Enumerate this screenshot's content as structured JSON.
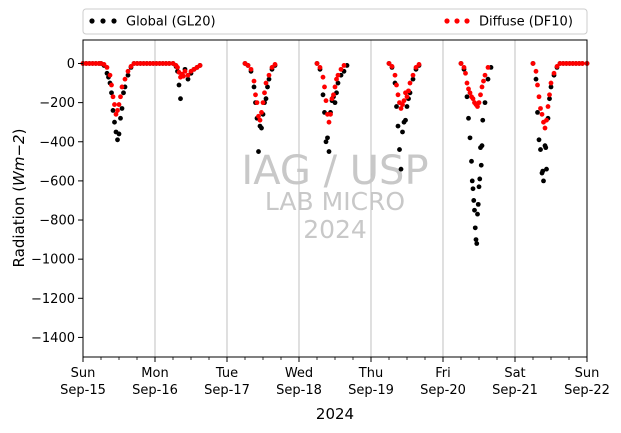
{
  "chart_data": {
    "type": "scatter",
    "xlabel": "2024",
    "ylabel": "Radiation (Wm−2)",
    "ylim": [
      -1500,
      120
    ],
    "yticks": [
      0,
      -200,
      -400,
      -600,
      -800,
      -1000,
      -1200,
      -1400
    ],
    "x_start": "2024-09-15",
    "x_end": "2024-09-22",
    "x_ticks": [
      {
        "day": "Sun",
        "date": "Sep-15"
      },
      {
        "day": "Mon",
        "date": "Sep-16"
      },
      {
        "day": "Tue",
        "date": "Sep-17"
      },
      {
        "day": "Wed",
        "date": "Sep-18"
      },
      {
        "day": "Thu",
        "date": "Sep-19"
      },
      {
        "day": "Fri",
        "date": "Sep-20"
      },
      {
        "day": "Sat",
        "date": "Sep-21"
      },
      {
        "day": "Sun",
        "date": "Sep-22"
      }
    ],
    "grid": "vertical",
    "legend_placement": "top",
    "series": [
      {
        "name": "Global (GL20)",
        "color": "#000000",
        "marker": "dot",
        "points": [
          [
            "09-15 00:00",
            0
          ],
          [
            "09-15 06:00",
            0
          ],
          [
            "09-15 07:00",
            -10
          ],
          [
            "09-15 08:00",
            -50
          ],
          [
            "09-15 08:30",
            -70
          ],
          [
            "09-15 09:00",
            -100
          ],
          [
            "09-15 09:30",
            -150
          ],
          [
            "09-15 10:00",
            -240
          ],
          [
            "09-15 10:30",
            -300
          ],
          [
            "09-15 11:00",
            -350
          ],
          [
            "09-15 11:30",
            -390
          ],
          [
            "09-15 12:00",
            -360
          ],
          [
            "09-15 12:30",
            -280
          ],
          [
            "09-15 13:00",
            -230
          ],
          [
            "09-15 13:30",
            -150
          ],
          [
            "09-15 14:00",
            -120
          ],
          [
            "09-15 15:00",
            -60
          ],
          [
            "09-15 16:00",
            -20
          ],
          [
            "09-15 17:00",
            0
          ],
          [
            "09-16 06:00",
            0
          ],
          [
            "09-16 07:00",
            -15
          ],
          [
            "09-16 07:30",
            -40
          ],
          [
            "09-16 08:00",
            -110
          ],
          [
            "09-16 08:30",
            -180
          ],
          [
            "09-16 09:00",
            -60
          ],
          [
            "09-16 10:00",
            -30
          ],
          [
            "09-16 11:00",
            -80
          ],
          [
            "09-16 12:00",
            -50
          ],
          [
            "09-16 13:00",
            -30
          ],
          [
            "09-16 14:00",
            -20
          ],
          [
            "09-16 15:00",
            -10
          ],
          [
            "09-17 06:00",
            0
          ],
          [
            "09-17 07:00",
            -10
          ],
          [
            "09-17 08:00",
            -40
          ],
          [
            "09-17 09:00",
            -120
          ],
          [
            "09-17 09:30",
            -200
          ],
          [
            "09-17 10:00",
            -280
          ],
          [
            "09-17 10:30",
            -450
          ],
          [
            "09-17 11:00",
            -320
          ],
          [
            "09-17 11:30",
            -330
          ],
          [
            "09-17 12:00",
            -260
          ],
          [
            "09-17 12:30",
            -200
          ],
          [
            "09-17 13:00",
            -180
          ],
          [
            "09-17 13:30",
            -120
          ],
          [
            "09-17 14:00",
            -80
          ],
          [
            "09-17 15:00",
            -30
          ],
          [
            "09-17 16:00",
            -10
          ],
          [
            "09-18 06:00",
            0
          ],
          [
            "09-18 07:00",
            -30
          ],
          [
            "09-18 08:00",
            -160
          ],
          [
            "09-18 08:30",
            -250
          ],
          [
            "09-18 09:00",
            -400
          ],
          [
            "09-18 09:30",
            -380
          ],
          [
            "09-18 10:00",
            -450
          ],
          [
            "09-18 10:30",
            -250
          ],
          [
            "09-18 11:00",
            -190
          ],
          [
            "09-18 11:30",
            -170
          ],
          [
            "09-18 12:00",
            -200
          ],
          [
            "09-18 12:30",
            -150
          ],
          [
            "09-18 13:00",
            -100
          ],
          [
            "09-18 14:00",
            -60
          ],
          [
            "09-18 15:00",
            -40
          ],
          [
            "09-18 16:00",
            -10
          ],
          [
            "09-19 06:00",
            0
          ],
          [
            "09-19 07:00",
            -20
          ],
          [
            "09-19 08:00",
            -100
          ],
          [
            "09-19 08:30",
            -220
          ],
          [
            "09-19 09:00",
            -320
          ],
          [
            "09-19 09:30",
            -440
          ],
          [
            "09-19 10:00",
            -540
          ],
          [
            "09-19 10:30",
            -350
          ],
          [
            "09-19 11:00",
            -300
          ],
          [
            "09-19 11:30",
            -290
          ],
          [
            "09-19 12:00",
            -220
          ],
          [
            "09-19 12:30",
            -180
          ],
          [
            "09-19 13:00",
            -150
          ],
          [
            "09-19 14:00",
            -80
          ],
          [
            "09-19 15:00",
            -30
          ],
          [
            "09-19 16:00",
            -10
          ],
          [
            "09-20 06:00",
            0
          ],
          [
            "09-20 07:00",
            -30
          ],
          [
            "09-20 08:00",
            -170
          ],
          [
            "09-20 08:30",
            -280
          ],
          [
            "09-20 09:00",
            -380
          ],
          [
            "09-20 09:30",
            -500
          ],
          [
            "09-20 09:45",
            -600
          ],
          [
            "09-20 10:00",
            -640
          ],
          [
            "09-20 10:15",
            -700
          ],
          [
            "09-20 10:30",
            -750
          ],
          [
            "09-20 10:45",
            -840
          ],
          [
            "09-20 11:00",
            -900
          ],
          [
            "09-20 11:15",
            -920
          ],
          [
            "09-20 11:30",
            -770
          ],
          [
            "09-20 11:45",
            -720
          ],
          [
            "09-20 12:00",
            -630
          ],
          [
            "09-20 12:15",
            -590
          ],
          [
            "09-20 12:30",
            -430
          ],
          [
            "09-20 12:45",
            -520
          ],
          [
            "09-20 13:00",
            -420
          ],
          [
            "09-20 13:15",
            -290
          ],
          [
            "09-20 14:00",
            -200
          ],
          [
            "09-20 15:00",
            -80
          ],
          [
            "09-20 16:00",
            -20
          ],
          [
            "09-21 06:00",
            0
          ],
          [
            "09-21 07:00",
            -80
          ],
          [
            "09-21 07:30",
            -250
          ],
          [
            "09-21 08:00",
            -390
          ],
          [
            "09-21 08:30",
            -440
          ],
          [
            "09-21 09:00",
            -560
          ],
          [
            "09-21 09:15",
            -550
          ],
          [
            "09-21 09:30",
            -600
          ],
          [
            "09-21 10:00",
            -420
          ],
          [
            "09-21 10:15",
            -430
          ],
          [
            "09-21 10:30",
            -540
          ],
          [
            "09-21 11:00",
            -280
          ],
          [
            "09-21 11:30",
            -180
          ],
          [
            "09-21 12:00",
            -120
          ],
          [
            "09-21 13:00",
            -60
          ],
          [
            "09-21 14:00",
            -20
          ],
          [
            "09-21 15:00",
            0
          ],
          [
            "09-22 00:00",
            0
          ]
        ]
      },
      {
        "name": "Diffuse (DF10)",
        "color": "#ff0000",
        "marker": "dot",
        "points": [
          [
            "09-15 00:00",
            0
          ],
          [
            "09-15 06:00",
            0
          ],
          [
            "09-15 07:00",
            -5
          ],
          [
            "09-15 08:00",
            -20
          ],
          [
            "09-15 09:00",
            -60
          ],
          [
            "09-15 09:30",
            -110
          ],
          [
            "09-15 10:00",
            -170
          ],
          [
            "09-15 10:30",
            -210
          ],
          [
            "09-15 11:00",
            -260
          ],
          [
            "09-15 11:30",
            -240
          ],
          [
            "09-15 12:00",
            -210
          ],
          [
            "09-15 12:30",
            -170
          ],
          [
            "09-15 13:00",
            -120
          ],
          [
            "09-15 14:00",
            -80
          ],
          [
            "09-15 15:00",
            -40
          ],
          [
            "09-15 16:00",
            -15
          ],
          [
            "09-15 17:00",
            0
          ],
          [
            "09-16 06:00",
            0
          ],
          [
            "09-16 07:00",
            -10
          ],
          [
            "09-16 07:30",
            -20
          ],
          [
            "09-16 08:00",
            -45
          ],
          [
            "09-16 08:30",
            -70
          ],
          [
            "09-16 09:00",
            -55
          ],
          [
            "09-16 09:30",
            -65
          ],
          [
            "09-16 10:00",
            -40
          ],
          [
            "09-16 11:00",
            -60
          ],
          [
            "09-16 12:00",
            -40
          ],
          [
            "09-16 13:00",
            -30
          ],
          [
            "09-16 14:00",
            -20
          ],
          [
            "09-16 15:00",
            -10
          ],
          [
            "09-17 06:00",
            0
          ],
          [
            "09-17 07:00",
            -10
          ],
          [
            "09-17 08:00",
            -30
          ],
          [
            "09-17 09:00",
            -90
          ],
          [
            "09-17 09:30",
            -160
          ],
          [
            "09-17 10:00",
            -200
          ],
          [
            "09-17 10:30",
            -270
          ],
          [
            "09-17 11:00",
            -290
          ],
          [
            "09-17 11:30",
            -250
          ],
          [
            "09-17 12:00",
            -200
          ],
          [
            "09-17 12:30",
            -150
          ],
          [
            "09-17 13:00",
            -100
          ],
          [
            "09-17 14:00",
            -60
          ],
          [
            "09-17 15:00",
            -20
          ],
          [
            "09-17 16:00",
            -5
          ],
          [
            "09-18 06:00",
            0
          ],
          [
            "09-18 07:00",
            -20
          ],
          [
            "09-18 08:00",
            -70
          ],
          [
            "09-18 08:30",
            -120
          ],
          [
            "09-18 09:00",
            -190
          ],
          [
            "09-18 09:30",
            -260
          ],
          [
            "09-18 10:00",
            -300
          ],
          [
            "09-18 10:30",
            -260
          ],
          [
            "09-18 11:00",
            -180
          ],
          [
            "09-18 11:30",
            -160
          ],
          [
            "09-18 12:00",
            -120
          ],
          [
            "09-18 12:30",
            -80
          ],
          [
            "09-18 13:00",
            -60
          ],
          [
            "09-18 14:00",
            -30
          ],
          [
            "09-18 15:00",
            -10
          ],
          [
            "09-19 06:00",
            0
          ],
          [
            "09-19 07:00",
            -15
          ],
          [
            "09-19 08:00",
            -60
          ],
          [
            "09-19 08:30",
            -110
          ],
          [
            "09-19 09:00",
            -160
          ],
          [
            "09-19 09:30",
            -200
          ],
          [
            "09-19 10:00",
            -230
          ],
          [
            "09-19 10:30",
            -210
          ],
          [
            "09-19 11:00",
            -190
          ],
          [
            "09-19 11:30",
            -150
          ],
          [
            "09-19 12:00",
            -170
          ],
          [
            "09-19 12:30",
            -140
          ],
          [
            "09-19 13:00",
            -100
          ],
          [
            "09-19 14:00",
            -60
          ],
          [
            "09-19 15:00",
            -20
          ],
          [
            "09-19 16:00",
            -5
          ],
          [
            "09-20 06:00",
            0
          ],
          [
            "09-20 07:00",
            -20
          ],
          [
            "09-20 07:30",
            -50
          ],
          [
            "09-20 08:00",
            -100
          ],
          [
            "09-20 08:30",
            -130
          ],
          [
            "09-20 09:00",
            -150
          ],
          [
            "09-20 09:30",
            -170
          ],
          [
            "09-20 10:00",
            -180
          ],
          [
            "09-20 10:30",
            -200
          ],
          [
            "09-20 11:00",
            -210
          ],
          [
            "09-20 11:30",
            -220
          ],
          [
            "09-20 12:00",
            -200
          ],
          [
            "09-20 12:30",
            -160
          ],
          [
            "09-20 13:00",
            -120
          ],
          [
            "09-20 13:30",
            -90
          ],
          [
            "09-20 14:00",
            -60
          ],
          [
            "09-20 15:00",
            -20
          ],
          [
            "09-21 06:00",
            0
          ],
          [
            "09-21 07:00",
            -40
          ],
          [
            "09-21 07:30",
            -110
          ],
          [
            "09-21 08:00",
            -170
          ],
          [
            "09-21 08:30",
            -230
          ],
          [
            "09-21 09:00",
            -260
          ],
          [
            "09-21 09:30",
            -300
          ],
          [
            "09-21 10:00",
            -330
          ],
          [
            "09-21 10:30",
            -290
          ],
          [
            "09-21 11:00",
            -220
          ],
          [
            "09-21 11:30",
            -160
          ],
          [
            "09-21 12:00",
            -100
          ],
          [
            "09-21 13:00",
            -50
          ],
          [
            "09-21 14:00",
            -15
          ],
          [
            "09-21 15:00",
            0
          ],
          [
            "09-22 00:00",
            0
          ]
        ]
      }
    ]
  },
  "legend": {
    "global_label": "Global (GL20)",
    "diffuse_label": "Diffuse (DF10)"
  },
  "watermark": {
    "line1": "IAG / USP",
    "line2": "LAB MICRO",
    "line3": "2024"
  }
}
